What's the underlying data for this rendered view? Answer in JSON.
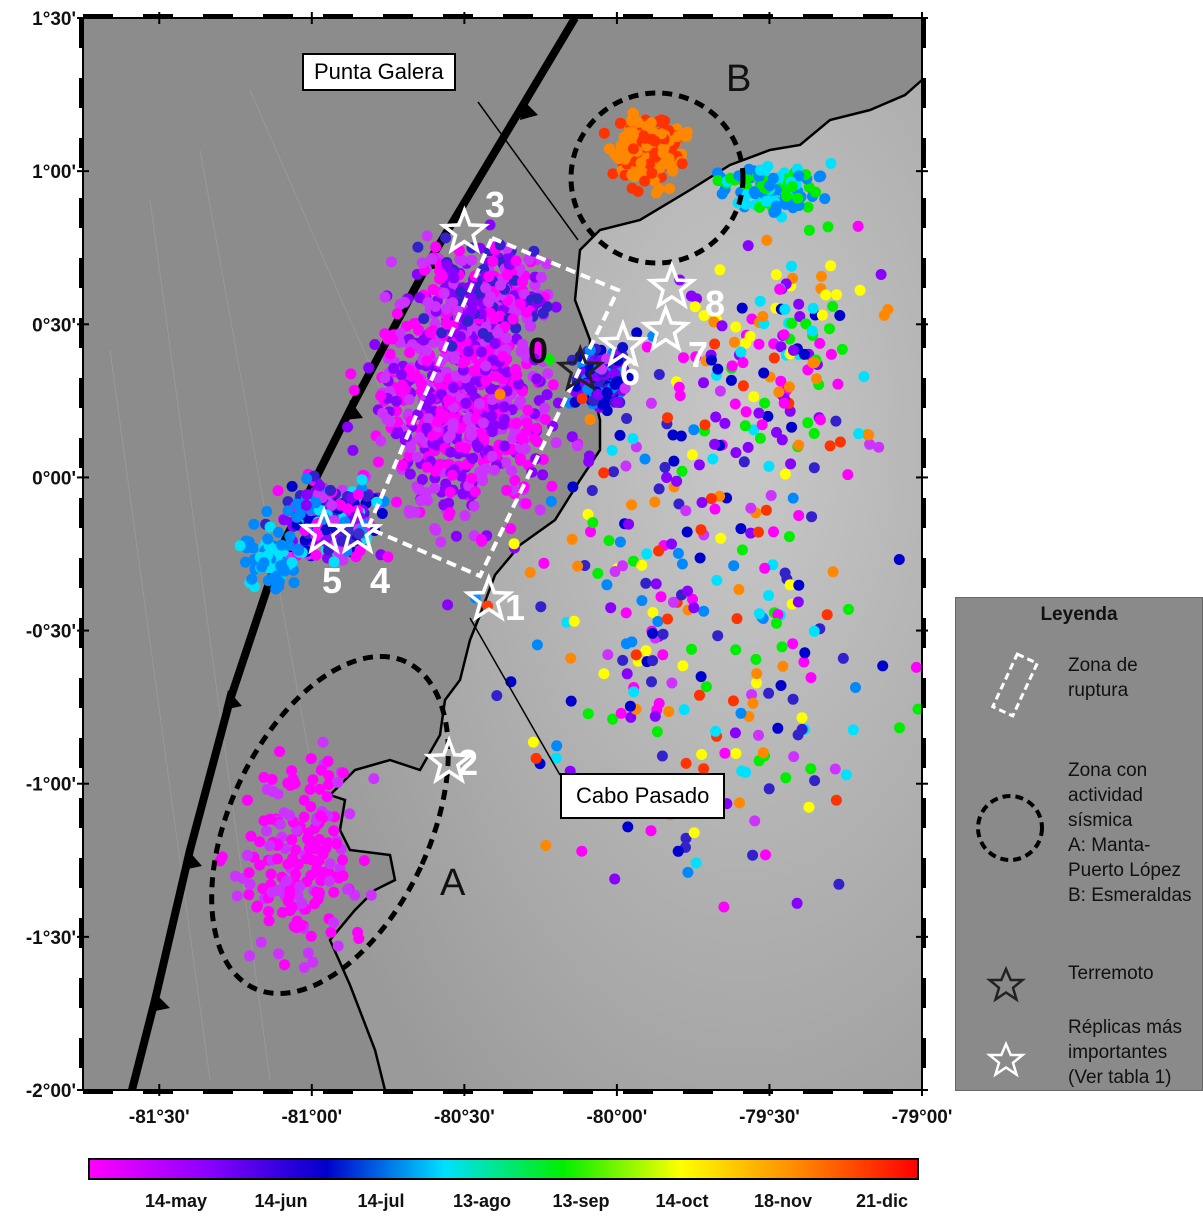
{
  "map": {
    "lat_labels": [
      "1°30'",
      "1°00'",
      "0°30'",
      "0°00'",
      "-0°30'",
      "-1°00'",
      "-1°30'",
      "-2°00'"
    ],
    "lon_labels": [
      "-81°30'",
      "-81°00'",
      "-80°30'",
      "-80°00'",
      "-79°30'",
      "-79°00'"
    ],
    "lat_range": [
      -2.0,
      1.5
    ],
    "lon_range": [
      -81.75,
      -79.0
    ],
    "callouts": {
      "punta_galera": "Punta Galera",
      "cabo_pasado": "Cabo Pasado"
    },
    "zones": {
      "a": "A",
      "b": "B"
    },
    "stars": [
      {
        "label": "0",
        "lon": -80.12,
        "lat": 0.35,
        "kind": "terremoto"
      },
      {
        "label": "1",
        "lon": -80.42,
        "lat": -0.4,
        "kind": "replica"
      },
      {
        "label": "2",
        "lon": -80.55,
        "lat": -0.93,
        "kind": "replica"
      },
      {
        "label": "3",
        "lon": -80.5,
        "lat": 0.8,
        "kind": "replica"
      },
      {
        "label": "4",
        "lon": -80.85,
        "lat": -0.18,
        "kind": "replica"
      },
      {
        "label": "5",
        "lon": -80.96,
        "lat": -0.18,
        "kind": "replica"
      },
      {
        "label": "6",
        "lon": -79.98,
        "lat": 0.43,
        "kind": "replica"
      },
      {
        "label": "7",
        "lon": -79.84,
        "lat": 0.48,
        "kind": "replica"
      },
      {
        "label": "8",
        "lon": -79.82,
        "lat": 0.62,
        "kind": "replica"
      }
    ]
  },
  "legend": {
    "title": "Leyenda",
    "rupture": "Zona de ruptura",
    "seismic_zone": "Zona con actividad sísmica A: Manta-Puerto López B: Esmeraldas",
    "seismic_zone_lines": [
      "Zona con",
      "actividad",
      "sísmica",
      "A: Manta-",
      "Puerto López",
      "B: Esmeraldas"
    ],
    "earthquake": "Terremoto",
    "aftershocks": "Réplicas más importantes (Ver tabla 1)",
    "aftershocks_lines": [
      "Réplicas más",
      "importantes",
      "(Ver tabla 1)"
    ]
  },
  "colorbar": {
    "labels": [
      "14-may",
      "14-jun",
      "14-jul",
      "13-ago",
      "13-sep",
      "14-oct",
      "18-nov",
      "21-dic"
    ],
    "colors": [
      "#ff00ff",
      "#8a00ff",
      "#0000cc",
      "#00e0ff",
      "#00ee00",
      "#ffff00",
      "#ff8800",
      "#ff0000"
    ]
  },
  "colors": {
    "land": "#bdbdbd",
    "ocean": "#8c8c8c",
    "frame": "#000000",
    "legend_bg": "#8a8a8a"
  }
}
